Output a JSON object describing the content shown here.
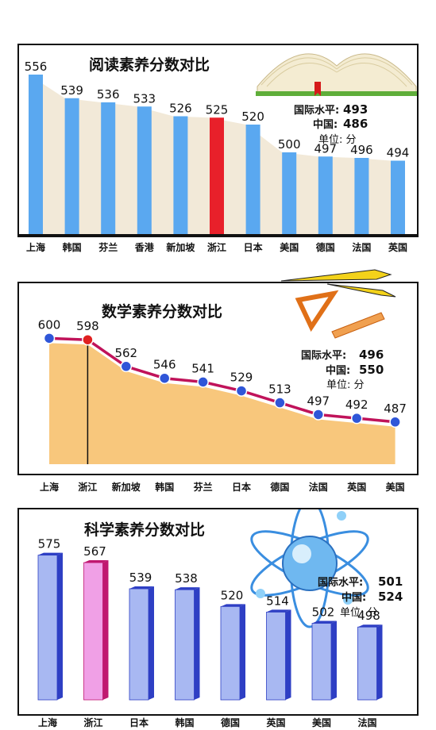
{
  "chart_data": [
    {
      "type": "bar",
      "title": "阅读素养分数对比",
      "categories": [
        "上海",
        "韩国",
        "芬兰",
        "香港",
        "新加坡",
        "浙江",
        "日本",
        "美国",
        "德国",
        "法国",
        "英国"
      ],
      "values": [
        556,
        539,
        536,
        533,
        526,
        525,
        520,
        500,
        497,
        496,
        494
      ],
      "highlight": "浙江",
      "ylim": [
        440,
        560
      ],
      "info": {
        "intl_label": "国际水平:",
        "intl_value": "493",
        "china_label": "中国:",
        "china_value": "486",
        "unit": "单位: 分"
      },
      "colors": {
        "bar": "#5aa8f0",
        "highlight": "#e8202a",
        "shade": "#f2e9d8"
      }
    },
    {
      "type": "line",
      "title": "数学素养分数对比",
      "categories": [
        "上海",
        "浙江",
        "新加坡",
        "韩国",
        "芬兰",
        "日本",
        "德国",
        "法国",
        "英国",
        "美国"
      ],
      "values": [
        600,
        598,
        562,
        546,
        541,
        529,
        513,
        497,
        492,
        487
      ],
      "highlight": "浙江",
      "ylim": [
        430,
        610
      ],
      "info": {
        "intl_label": "国际水平:",
        "intl_value": "496",
        "china_label": "中国:",
        "china_value": "550",
        "unit": "单位: 分"
      },
      "colors": {
        "line": "#c0135a",
        "point": "#2f56d8",
        "highlight": "#e02020",
        "area": "#f5b450"
      }
    },
    {
      "type": "bar",
      "title": "科学素养分数对比",
      "categories": [
        "上海",
        "浙江",
        "日本",
        "韩国",
        "德国",
        "英国",
        "美国",
        "法国"
      ],
      "values": [
        575,
        567,
        539,
        538,
        520,
        514,
        502,
        498
      ],
      "highlight": "浙江",
      "ylim": [
        420,
        590
      ],
      "info": {
        "intl_label": "国际水平:",
        "intl_value": "501",
        "china_label": "中国:",
        "china_value": "524",
        "unit": "单位: 分"
      },
      "colors": {
        "bar": "#a8b8f2",
        "side": "#2e3fc4",
        "highlight": "#f0a0e6",
        "highlight_side": "#c01870"
      }
    }
  ]
}
